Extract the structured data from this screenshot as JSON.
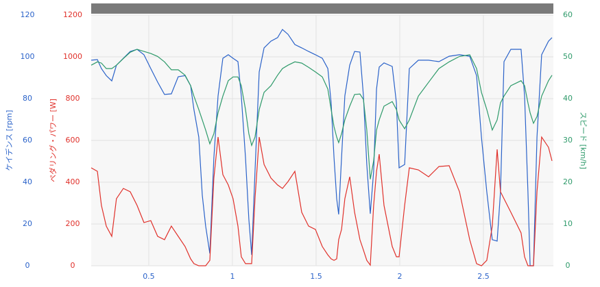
{
  "chart_data": {
    "type": "line",
    "x": [
      0.156,
      0.193,
      0.217,
      0.246,
      0.279,
      0.307,
      0.348,
      0.389,
      0.43,
      0.471,
      0.512,
      0.553,
      0.594,
      0.635,
      0.676,
      0.717,
      0.75,
      0.77,
      0.799,
      0.82,
      0.84,
      0.865,
      0.889,
      0.914,
      0.943,
      0.975,
      1.004,
      1.033,
      1.053,
      1.078,
      1.098,
      1.115,
      1.135,
      1.16,
      1.189,
      1.23,
      1.27,
      1.299,
      1.332,
      1.373,
      1.414,
      1.455,
      1.496,
      1.537,
      1.57,
      1.59,
      1.607,
      1.623,
      1.635,
      1.652,
      1.672,
      1.701,
      1.73,
      1.762,
      1.783,
      1.803,
      1.824,
      1.844,
      1.861,
      1.877,
      1.906,
      1.955,
      1.98,
      1.996,
      2.029,
      2.057,
      2.111,
      2.172,
      2.234,
      2.295,
      2.357,
      2.418,
      2.459,
      2.488,
      2.52,
      2.553,
      2.582,
      2.602,
      2.623,
      2.664,
      2.725,
      2.746,
      2.766,
      2.779,
      2.799,
      2.82,
      2.848,
      2.889,
      2.91
    ],
    "xlim": [
      0.156,
      2.918
    ],
    "xticks": [
      0.5,
      1,
      1.5,
      2,
      2.5
    ],
    "ylim": [
      0,
      120
    ],
    "yticks": [
      0,
      20,
      40,
      60,
      80,
      100,
      120
    ],
    "ylabel": "ケイデンス [rpm]",
    "y2lim": [
      0,
      1200
    ],
    "y2ticks": [
      0,
      200,
      400,
      600,
      800,
      1000,
      1200
    ],
    "y2label": "ペダリング・パワー [W]",
    "y3lim": [
      0,
      60
    ],
    "y3ticks": [
      0,
      10,
      20,
      30,
      40,
      50,
      60
    ],
    "y3label": "スピード [km/h]",
    "grid": true,
    "series": [
      {
        "name": "ケイデンス",
        "color": "#2a62c9",
        "axis": "y",
        "values": [
          98.4,
          98.7,
          94.4,
          91,
          88.5,
          96,
          99.3,
          102.6,
          103.6,
          101,
          94.4,
          87.9,
          82,
          82.3,
          90.5,
          91,
          86.2,
          74.8,
          61.6,
          33.8,
          19,
          5.9,
          51.8,
          81.3,
          99.3,
          101,
          99.3,
          97.7,
          81.3,
          51.8,
          22.3,
          5.2,
          45.2,
          92.8,
          104.3,
          107.5,
          109.2,
          113.1,
          110.8,
          105.9,
          104.3,
          102.6,
          101,
          99.3,
          94.4,
          78,
          51.8,
          32.1,
          24.6,
          51.8,
          81.3,
          96,
          102.6,
          102.3,
          81.3,
          48.5,
          24.9,
          45.2,
          84.6,
          95.1,
          97.1,
          95.4,
          78,
          46.9,
          48.5,
          94.4,
          98.4,
          98.4,
          97.7,
          100.3,
          101,
          100.3,
          91,
          61.6,
          35.4,
          12.5,
          11.8,
          35.4,
          97.7,
          103.6,
          103.6,
          81.3,
          35.4,
          0,
          0,
          61.6,
          101,
          107.5,
          109.2
        ]
      },
      {
        "name": "パワー",
        "color": "#e0302a",
        "axis": "y2",
        "values": [
          469,
          452,
          289,
          190,
          141,
          321,
          370,
          354,
          289,
          207,
          216,
          141,
          125,
          190,
          141,
          92,
          33,
          10,
          0,
          0,
          0,
          26,
          420,
          616,
          436,
          387,
          321,
          190,
          43,
          10,
          10,
          10,
          321,
          616,
          485,
          420,
          387,
          370,
          403,
          452,
          256,
          190,
          174,
          92,
          52,
          33,
          26,
          33,
          125,
          174,
          321,
          426,
          256,
          125,
          75,
          26,
          3,
          289,
          452,
          534,
          289,
          92,
          43,
          43,
          289,
          469,
          459,
          426,
          475,
          479,
          354,
          125,
          10,
          0,
          26,
          190,
          557,
          354,
          321,
          256,
          157,
          43,
          0,
          0,
          0,
          354,
          616,
          567,
          502
        ]
      },
      {
        "name": "スピード",
        "color": "#2e9a6a",
        "axis": "y3",
        "values": [
          48,
          48.8,
          48.5,
          47.2,
          47.2,
          48,
          49.6,
          51.1,
          51.8,
          51.3,
          50.8,
          50.1,
          48.8,
          46.9,
          46.9,
          45.6,
          43.1,
          40.6,
          37.4,
          34.9,
          32.5,
          29.2,
          31.6,
          36.6,
          40.6,
          44.3,
          45.2,
          45.2,
          43.1,
          37.4,
          31.6,
          28.8,
          30.8,
          37.4,
          41.5,
          43.1,
          45.6,
          47.2,
          48,
          48.8,
          48.5,
          47.5,
          46.4,
          45.2,
          42.3,
          37.4,
          33.3,
          30.8,
          29.5,
          31.6,
          34.9,
          38.2,
          41,
          41.1,
          39.8,
          32.5,
          20.7,
          25.1,
          32.5,
          34.9,
          38.2,
          39.3,
          37.4,
          34.9,
          32.8,
          34.9,
          40.6,
          43.9,
          47.2,
          48.8,
          50.1,
          50.5,
          47.2,
          41.5,
          37.4,
          32.5,
          34.9,
          39,
          40.6,
          43.1,
          44.3,
          43.1,
          39,
          36.6,
          34.1,
          35.7,
          40.6,
          44.3,
          45.6
        ]
      }
    ]
  }
}
